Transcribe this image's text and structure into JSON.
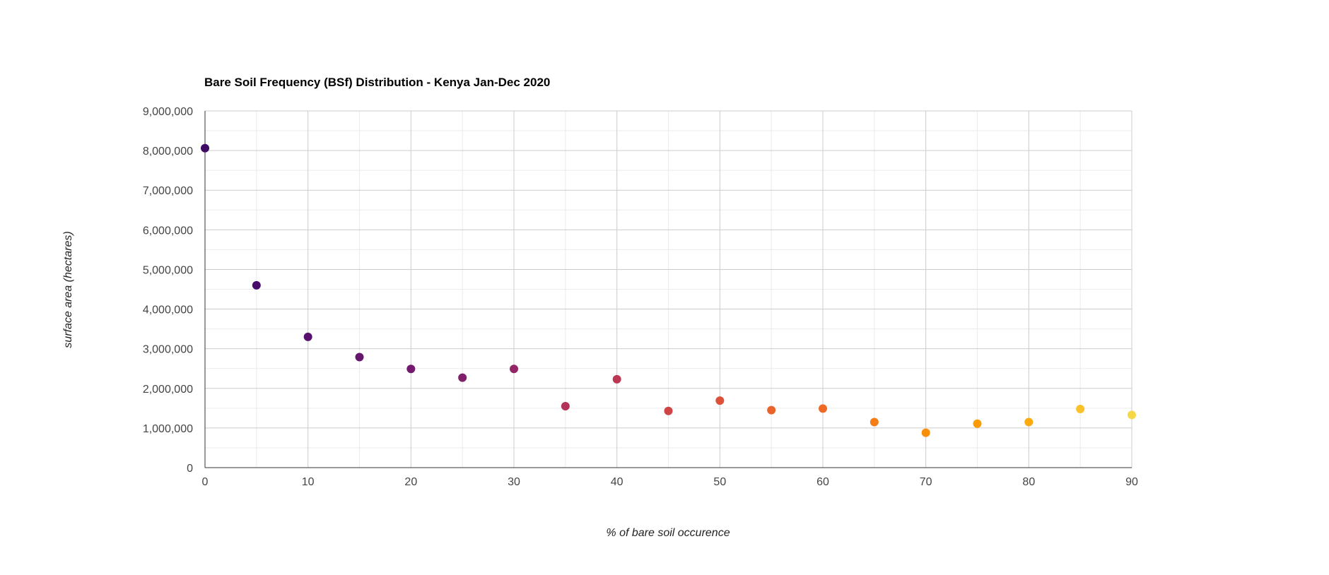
{
  "chart_data": {
    "type": "scatter",
    "title": "Bare Soil Frequency (BSf) Distribution - Kenya Jan-Dec 2020",
    "xlabel": "% of bare soil occurence",
    "ylabel": "surface area (hectares)",
    "xlim": [
      0,
      90
    ],
    "ylim": [
      0,
      9000000
    ],
    "x_ticks": [
      0,
      10,
      20,
      30,
      40,
      50,
      60,
      70,
      80,
      90
    ],
    "x_tick_labels": [
      "0",
      "10",
      "20",
      "30",
      "40",
      "50",
      "60",
      "70",
      "80",
      "90"
    ],
    "y_ticks": [
      0,
      1000000,
      2000000,
      3000000,
      4000000,
      5000000,
      6000000,
      7000000,
      8000000,
      9000000
    ],
    "y_tick_labels": [
      "0",
      "1,000,000",
      "2,000,000",
      "3,000,000",
      "4,000,000",
      "5,000,000",
      "6,000,000",
      "7,000,000",
      "8,000,000",
      "9,000,000"
    ],
    "grid": true,
    "minor_grid": true,
    "legend": "none",
    "points": [
      {
        "x": 0,
        "y": 8060000,
        "color": "#3f0a63"
      },
      {
        "x": 5,
        "y": 4600000,
        "color": "#4a0c6b"
      },
      {
        "x": 10,
        "y": 3300000,
        "color": "#58116e"
      },
      {
        "x": 15,
        "y": 2790000,
        "color": "#65156e"
      },
      {
        "x": 20,
        "y": 2490000,
        "color": "#731a6e"
      },
      {
        "x": 25,
        "y": 2270000,
        "color": "#801f6c"
      },
      {
        "x": 30,
        "y": 2490000,
        "color": "#932667"
      },
      {
        "x": 35,
        "y": 1550000,
        "color": "#b23258"
      },
      {
        "x": 40,
        "y": 2230000,
        "color": "#bc3754"
      },
      {
        "x": 45,
        "y": 1430000,
        "color": "#cf4446"
      },
      {
        "x": 50,
        "y": 1690000,
        "color": "#dd513a"
      },
      {
        "x": 55,
        "y": 1450000,
        "color": "#ea632a"
      },
      {
        "x": 60,
        "y": 1490000,
        "color": "#ed6925"
      },
      {
        "x": 65,
        "y": 1150000,
        "color": "#f57d15"
      },
      {
        "x": 70,
        "y": 880000,
        "color": "#f98e09"
      },
      {
        "x": 75,
        "y": 1110000,
        "color": "#fb9b06"
      },
      {
        "x": 80,
        "y": 1150000,
        "color": "#fcaa0e"
      },
      {
        "x": 85,
        "y": 1480000,
        "color": "#fac228"
      },
      {
        "x": 90,
        "y": 1330000,
        "color": "#f6d746"
      }
    ],
    "colors": {
      "axis": "#333333",
      "major_grid": "#cccccc",
      "minor_grid": "#ebebeb"
    }
  }
}
